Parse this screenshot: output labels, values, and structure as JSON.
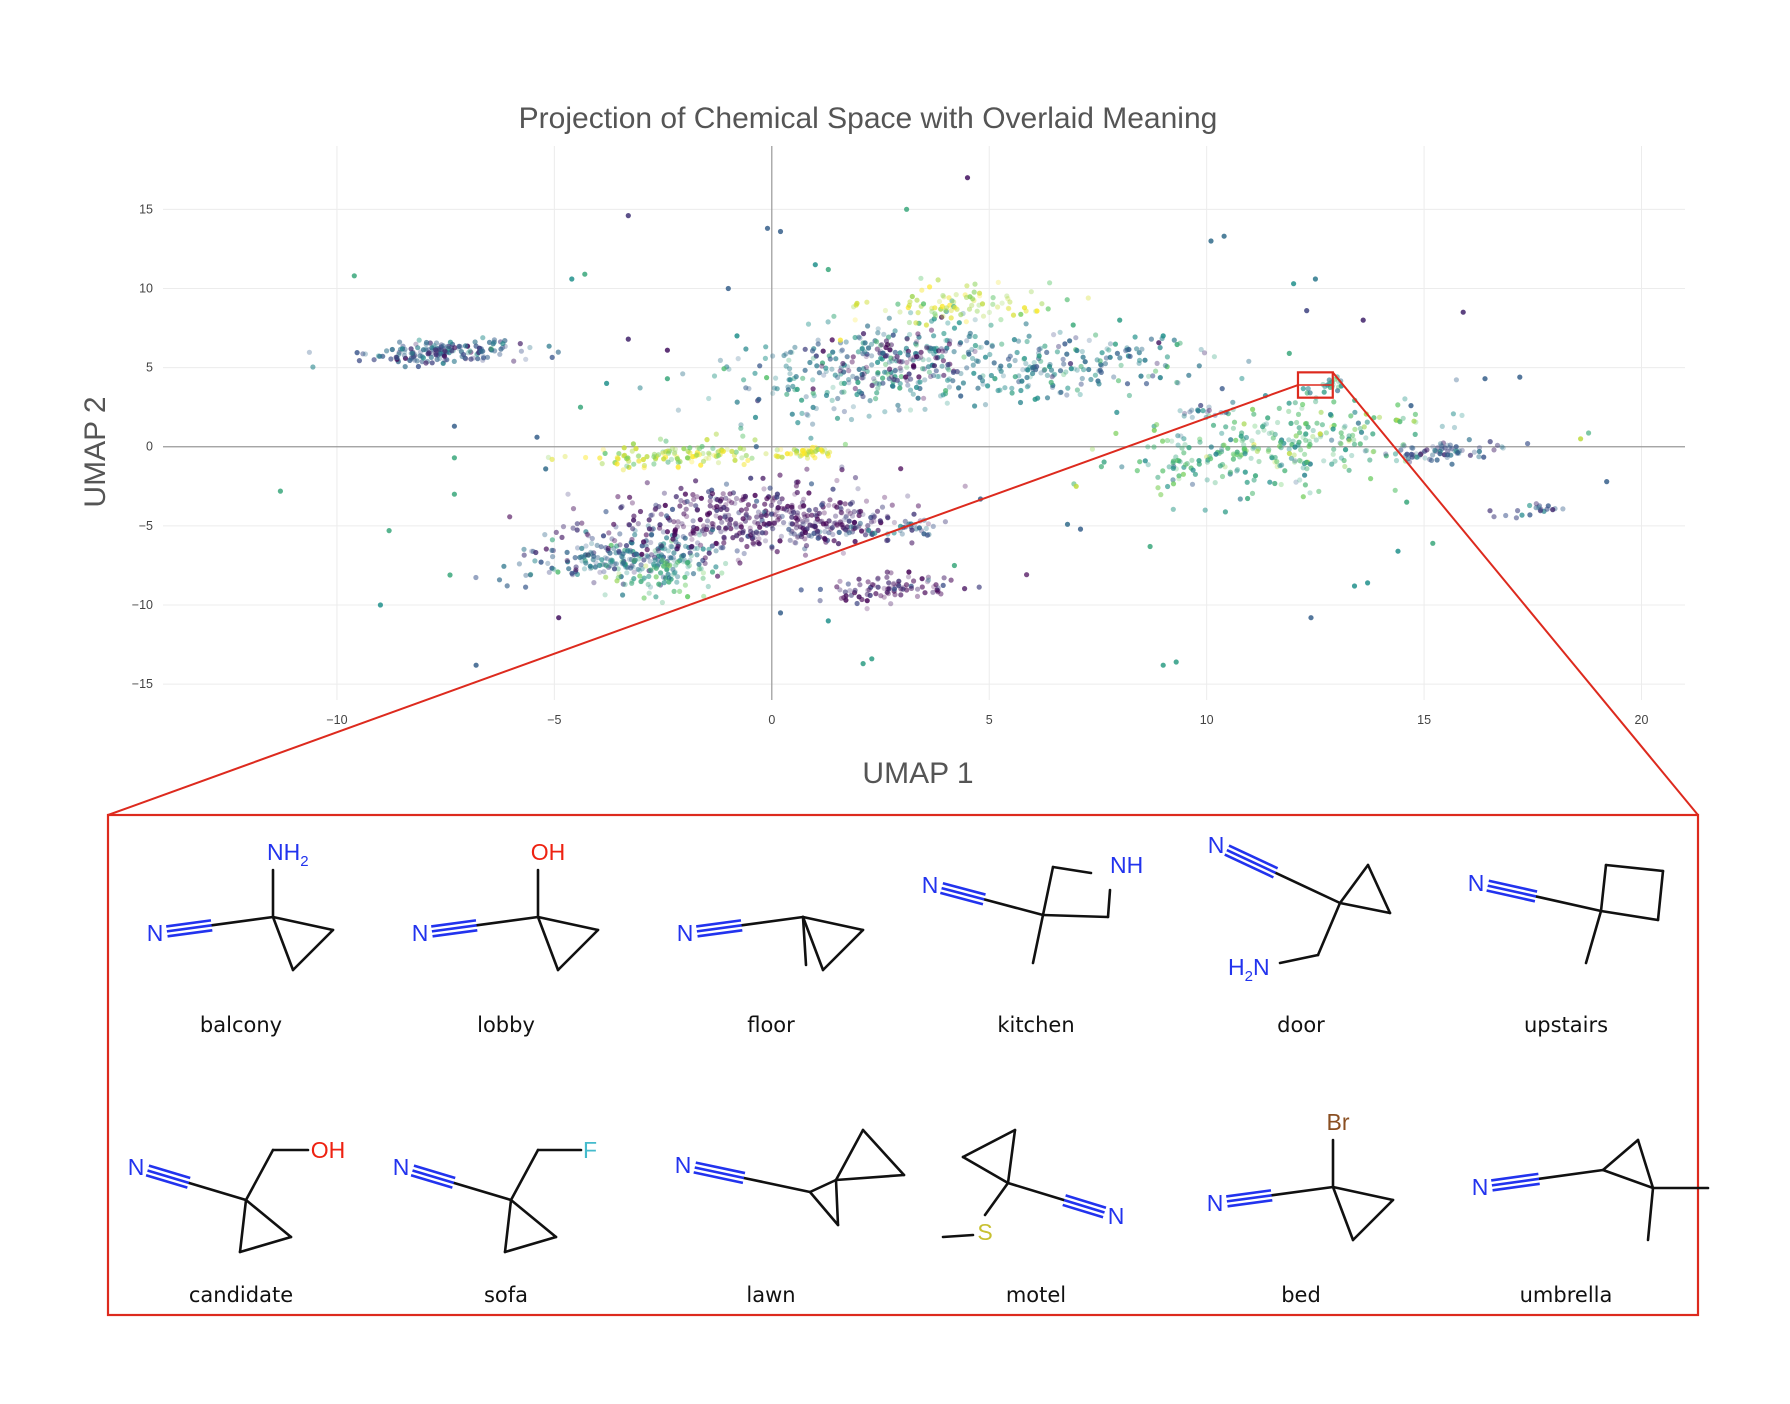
{
  "chart_data": {
    "type": "scatter",
    "title": "Projection of Chemical Space with Overlaid Meaning",
    "xlabel": "UMAP 1",
    "ylabel": "UMAP 2",
    "xlim": [
      -14,
      21
    ],
    "ylim": [
      -16,
      19
    ],
    "xticks": [
      "−10",
      "−5",
      "0",
      "5",
      "10",
      "15",
      "20"
    ],
    "xtick_values": [
      -10,
      -5,
      0,
      5,
      10,
      15,
      20
    ],
    "yticks": [
      "−15",
      "−10",
      "−5",
      "0",
      "5",
      "10",
      "15"
    ],
    "ytick_values": [
      -15,
      -10,
      -5,
      0,
      5,
      10,
      15
    ],
    "grid": true,
    "zero_lines": true,
    "colorscale": "viridis",
    "colorscale_colors": [
      "#440154",
      "#3b528b",
      "#21918c",
      "#5ec962",
      "#fde725"
    ],
    "clusters": [
      {
        "x": -7.5,
        "y": 6.0,
        "sx": 0.9,
        "sy": 0.5,
        "n": 170,
        "c": 0.28
      },
      {
        "x": -3.5,
        "y": -7.0,
        "sx": 1.3,
        "sy": 1.0,
        "n": 220,
        "c": 0.35
      },
      {
        "x": -2.5,
        "y": -8.0,
        "sx": 0.7,
        "sy": 0.9,
        "n": 80,
        "c": 0.62
      },
      {
        "x": -1.0,
        "y": -4.5,
        "sx": 1.6,
        "sy": 1.6,
        "n": 320,
        "c": 0.05
      },
      {
        "x": 1.0,
        "y": -5.0,
        "sx": 1.2,
        "sy": 1.0,
        "n": 160,
        "c": 0.06
      },
      {
        "x": -2.0,
        "y": -0.5,
        "sx": 1.2,
        "sy": 0.6,
        "n": 120,
        "c": 0.88
      },
      {
        "x": 0.7,
        "y": -0.4,
        "sx": 0.4,
        "sy": 0.3,
        "n": 40,
        "c": 0.97
      },
      {
        "x": 2.8,
        "y": -9.0,
        "sx": 0.8,
        "sy": 0.6,
        "n": 90,
        "c": 0.04
      },
      {
        "x": 2.5,
        "y": 5.0,
        "sx": 1.8,
        "sy": 2.2,
        "n": 320,
        "c": 0.45
      },
      {
        "x": 3.0,
        "y": 5.5,
        "sx": 0.8,
        "sy": 1.2,
        "n": 80,
        "c": 0.05
      },
      {
        "x": 4.3,
        "y": 9.0,
        "sx": 1.2,
        "sy": 0.9,
        "n": 90,
        "c": 0.88
      },
      {
        "x": 7.0,
        "y": 5.0,
        "sx": 1.7,
        "sy": 1.2,
        "n": 170,
        "c": 0.4
      },
      {
        "x": 11.5,
        "y": 0.0,
        "sx": 1.7,
        "sy": 2.0,
        "n": 300,
        "c": 0.62
      },
      {
        "x": 15.5,
        "y": -0.3,
        "sx": 0.7,
        "sy": 0.4,
        "n": 70,
        "c": 0.3
      },
      {
        "x": 12.7,
        "y": 3.8,
        "sx": 0.25,
        "sy": 0.35,
        "n": 22,
        "c": 0.55
      },
      {
        "x": 3.0,
        "y": -5.2,
        "sx": 0.6,
        "sy": 0.3,
        "n": 30,
        "c": 0.35
      },
      {
        "x": 10.0,
        "y": 2.2,
        "sx": 0.3,
        "sy": 0.3,
        "n": 20,
        "c": 0.3
      },
      {
        "x": 17.5,
        "y": -4.0,
        "sx": 0.5,
        "sy": 0.3,
        "n": 20,
        "c": 0.25
      }
    ],
    "outliers": [
      [
        -9.6,
        10.8,
        0.6
      ],
      [
        -11.3,
        -2.8,
        0.6
      ],
      [
        -9.0,
        -10.0,
        0.5
      ],
      [
        -8.8,
        -5.3,
        0.6
      ],
      [
        -7.4,
        -8.1,
        0.6
      ],
      [
        -7.3,
        -3.0,
        0.6
      ],
      [
        -6.8,
        -13.8,
        0.3
      ],
      [
        -7.3,
        -0.7,
        0.6
      ],
      [
        -7.3,
        1.3,
        0.3
      ],
      [
        -5.4,
        0.6,
        0.3
      ],
      [
        -5.2,
        -1.4,
        0.35
      ],
      [
        -4.6,
        10.6,
        0.5
      ],
      [
        -4.3,
        10.9,
        0.6
      ],
      [
        -4.4,
        2.5,
        0.6
      ],
      [
        -3.8,
        4.0,
        0.5
      ],
      [
        -3.3,
        14.6,
        0.15
      ],
      [
        -3.3,
        6.8,
        0.1
      ],
      [
        -2.4,
        6.1,
        0.05
      ],
      [
        -2.4,
        4.3,
        0.6
      ],
      [
        -4.9,
        -10.8,
        0.05
      ],
      [
        -1.0,
        10.0,
        0.3
      ],
      [
        -0.8,
        7.0,
        0.5
      ],
      [
        -0.3,
        3.0,
        0.3
      ],
      [
        -0.1,
        13.8,
        0.3
      ],
      [
        0.2,
        13.6,
        0.3
      ],
      [
        1.0,
        11.5,
        0.5
      ],
      [
        1.3,
        11.2,
        0.6
      ],
      [
        3.1,
        15.0,
        0.6
      ],
      [
        4.5,
        17.0,
        0.05
      ],
      [
        2.1,
        -13.7,
        0.55
      ],
      [
        2.3,
        -13.4,
        0.55
      ],
      [
        3.5,
        -5.5,
        0.3
      ],
      [
        0.2,
        -10.5,
        0.3
      ],
      [
        1.3,
        -11.0,
        0.5
      ],
      [
        4.2,
        -7.5,
        0.6
      ],
      [
        7.1,
        -5.2,
        0.3
      ],
      [
        6.8,
        -4.9,
        0.35
      ],
      [
        7.0,
        -2.5,
        0.9
      ],
      [
        8.7,
        -6.3,
        0.6
      ],
      [
        9.3,
        -13.6,
        0.55
      ],
      [
        9.0,
        -13.8,
        0.55
      ],
      [
        10.1,
        13.0,
        0.35
      ],
      [
        10.4,
        13.3,
        0.35
      ],
      [
        12.0,
        10.3,
        0.5
      ],
      [
        12.5,
        10.6,
        0.4
      ],
      [
        12.3,
        8.6,
        0.2
      ],
      [
        13.6,
        8.0,
        0.1
      ],
      [
        11.9,
        5.9,
        0.6
      ],
      [
        12.4,
        -10.8,
        0.3
      ],
      [
        15.9,
        8.5,
        0.1
      ],
      [
        16.4,
        4.3,
        0.3
      ],
      [
        17.2,
        4.4,
        0.3
      ],
      [
        14.7,
        2.6,
        0.3
      ],
      [
        14.6,
        -3.5,
        0.6
      ],
      [
        15.2,
        -6.1,
        0.6
      ],
      [
        18.6,
        0.5,
        0.9
      ],
      [
        19.2,
        -2.2,
        0.3
      ],
      [
        13.4,
        -8.8,
        0.5
      ],
      [
        13.7,
        -8.6,
        0.5
      ],
      [
        14.4,
        -6.6,
        0.5
      ],
      [
        4.8,
        -3.3,
        0.3
      ],
      [
        6.0,
        5.0,
        0.35
      ],
      [
        8.0,
        8.0,
        0.55
      ],
      [
        9.0,
        7.0,
        0.5
      ]
    ],
    "highlight_box": {
      "x": [
        12.1,
        12.9
      ],
      "y": [
        3.1,
        4.7
      ]
    }
  },
  "inset": {
    "molecules": [
      {
        "label": "balcony",
        "type": "cn_cp",
        "sub": "NH2",
        "dir": "up"
      },
      {
        "label": "lobby",
        "type": "cn_cp",
        "sub": "OH",
        "dir": "up"
      },
      {
        "label": "floor",
        "type": "cn_cp",
        "sub": "Me",
        "dir": "down"
      },
      {
        "label": "kitchen",
        "type": "azetidine"
      },
      {
        "label": "door",
        "type": "cn_cp_ch2",
        "sub": "H2N"
      },
      {
        "label": "upstairs",
        "type": "cyclobutane"
      },
      {
        "label": "candidate",
        "type": "cn_cp_ch2r",
        "sub": "OH"
      },
      {
        "label": "sofa",
        "type": "cn_cp_ch2r",
        "sub": "F"
      },
      {
        "label": "lawn",
        "type": "spiro"
      },
      {
        "label": "motel",
        "type": "sme"
      },
      {
        "label": "bed",
        "type": "cn_cp",
        "sub": "Br",
        "dir": "up"
      },
      {
        "label": "umbrella",
        "type": "gemdimethyl"
      }
    ],
    "atom_labels": {
      "N": "N",
      "NH2": "NH",
      "NH2_sub": "2",
      "OH": "OH",
      "NH": "NH",
      "H2N_H": "H",
      "H2N_2": "2",
      "H2N_N": "N",
      "F": "F",
      "S": "S",
      "Br": "Br"
    }
  },
  "colors": {
    "highlight": "#dd2a1e",
    "grid": "#ececec",
    "zero_line": "#9a9a9a"
  }
}
